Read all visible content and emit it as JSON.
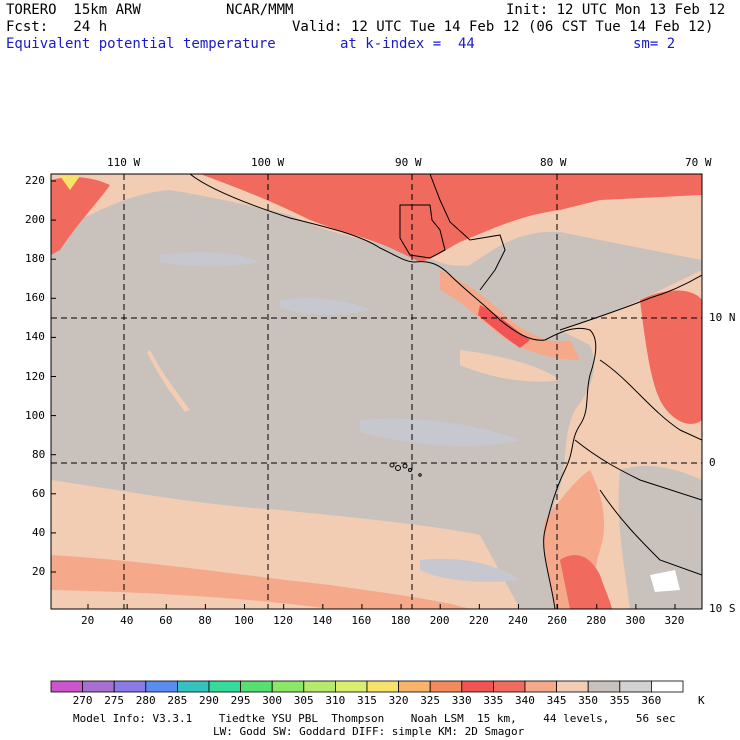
{
  "header": {
    "model": "TORERO  15km ARW",
    "center": "NCAR/MMM",
    "init": "Init: 12 UTC Mon 13 Feb 12",
    "fcst": "Fcst:   24 h",
    "valid": "Valid: 12 UTC Tue 14 Feb 12 (06 CST Tue 14 Feb 12)",
    "field": "Equivalent potential temperature",
    "level": "at k-index =  44",
    "smoothing": "sm= 2"
  },
  "map": {
    "lon_labels": [
      "110 W",
      "100 W",
      "90 W",
      "80 W",
      "70 W"
    ],
    "lat_labels": [
      "10 N",
      "0",
      "10 S"
    ],
    "y_ticks": [
      "220",
      "200",
      "180",
      "160",
      "140",
      "120",
      "100",
      "80",
      "60",
      "40",
      "20"
    ],
    "x_ticks": [
      "20",
      "40",
      "60",
      "80",
      "100",
      "120",
      "140",
      "160",
      "180",
      "200",
      "220",
      "240",
      "260",
      "280",
      "300",
      "320"
    ],
    "colors": {
      "background_field": "#c9c1bc",
      "warm_band": "#f2cdb4",
      "warmer_band": "#f5a98a",
      "hot_band": "#f06a5e",
      "hottest_band": "#f25454",
      "cool_patch": "#c7c7cf",
      "coast": "#000000"
    }
  },
  "colorbar": {
    "levels": [
      "270",
      "275",
      "280",
      "285",
      "290",
      "295",
      "300",
      "305",
      "310",
      "315",
      "320",
      "325",
      "330",
      "335",
      "340",
      "345",
      "350",
      "355",
      "360"
    ],
    "unit": "K",
    "colors": [
      "#cc55cc",
      "#a86ed2",
      "#8a7ae6",
      "#5b8cf0",
      "#35c3c0",
      "#33dc9a",
      "#55e070",
      "#8ce667",
      "#b6ea6a",
      "#dcee6e",
      "#f8e36a",
      "#f7b56c",
      "#f28a5c",
      "#f25454",
      "#f06a5e",
      "#f5a98a",
      "#f2cdb4",
      "#c9c1bc",
      "#d2d2d2",
      "#ffffff"
    ]
  },
  "footer": {
    "line1": "Model Info: V3.3.1    Tiedtke YSU PBL  Thompson    Noah LSM  15 km,    44 levels,    56 sec",
    "line2": "LW: Godd SW: Goddard DIFF: simple KM: 2D Smagor"
  }
}
